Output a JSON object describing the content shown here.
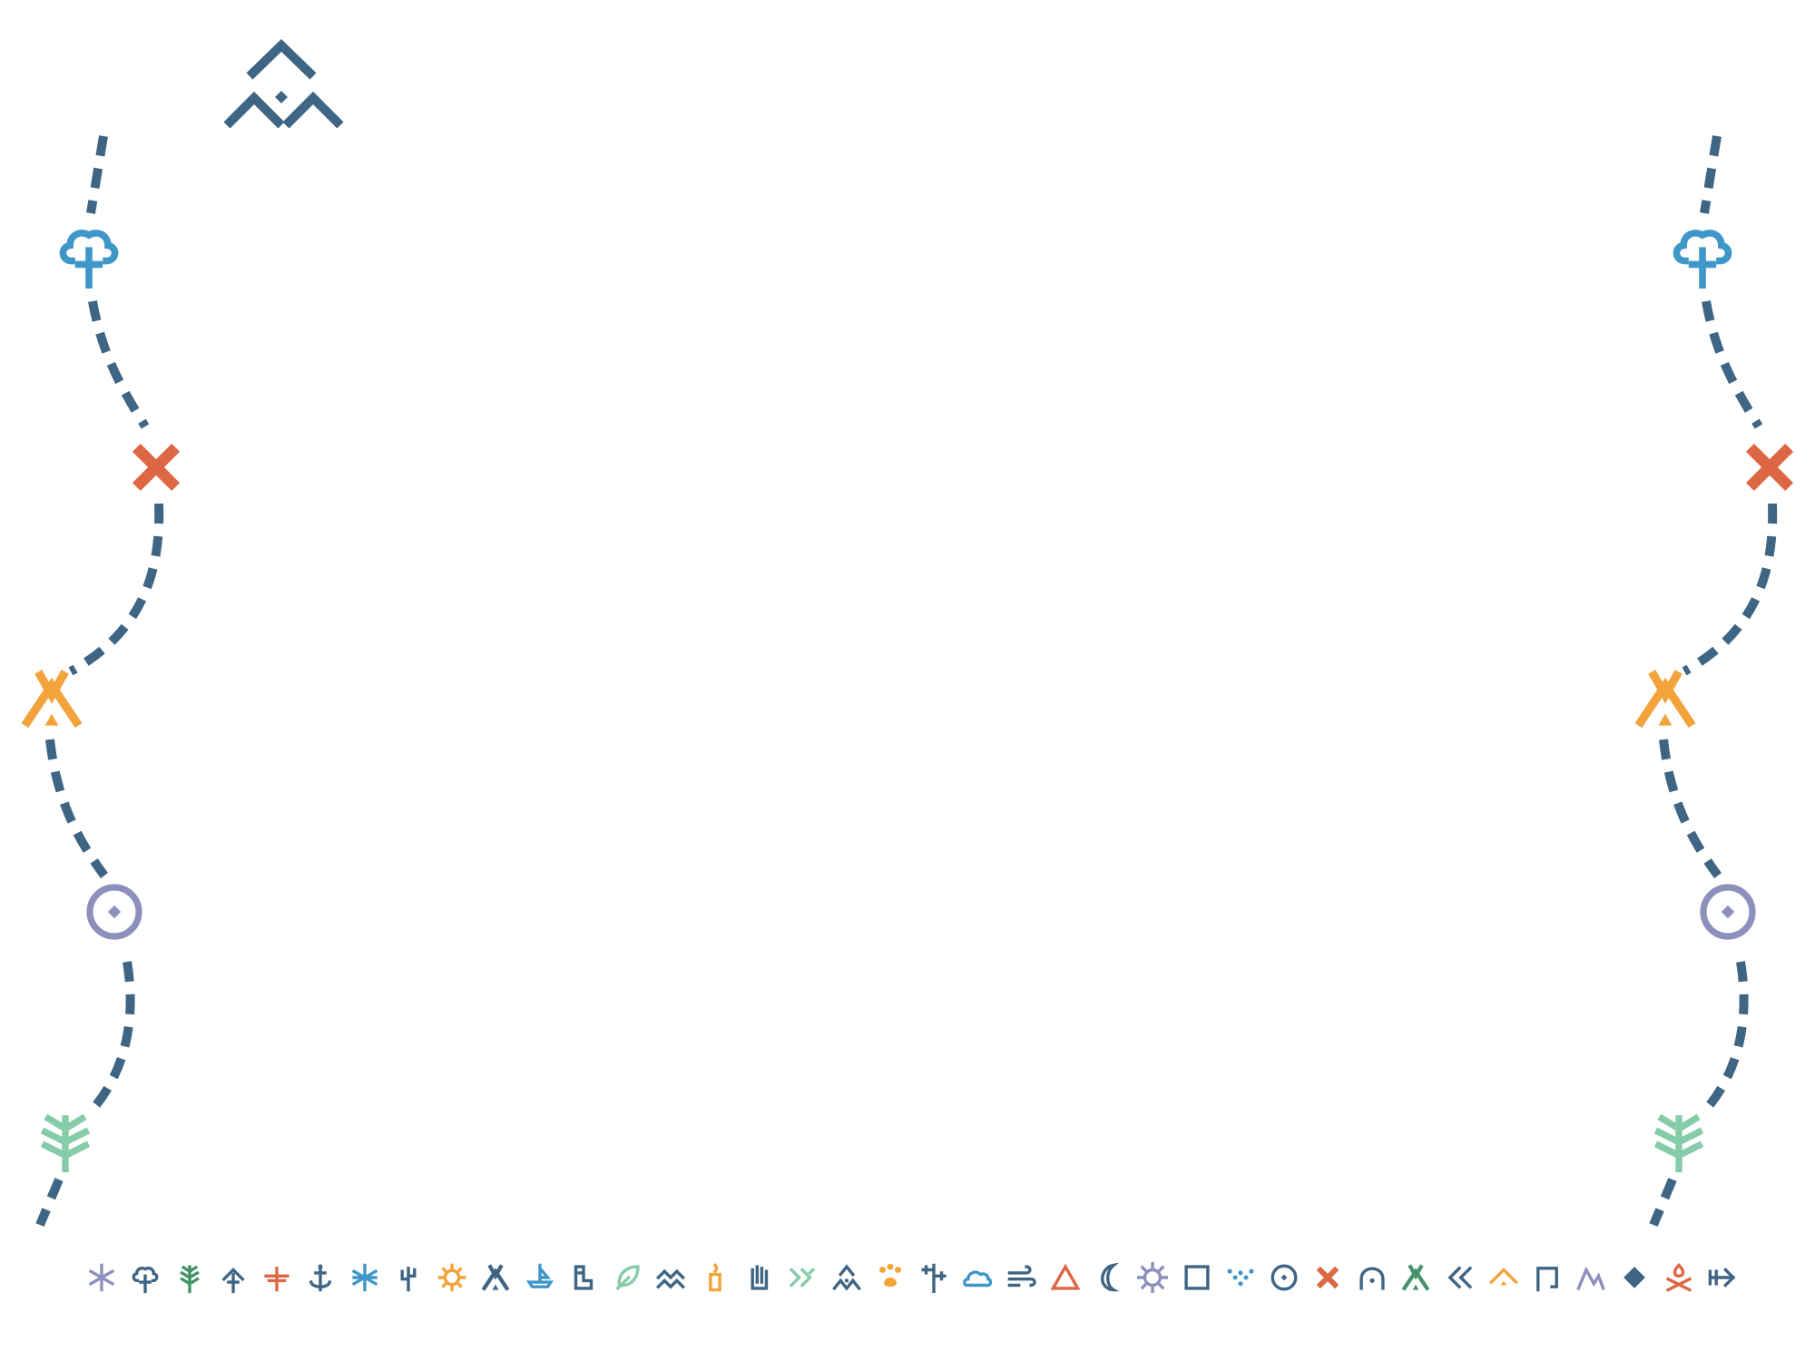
{
  "colors": {
    "navy": "#3f6584",
    "blue": "#3f96c8",
    "orange": "#f2a33a",
    "red": "#dd6744",
    "lavender": "#8f8fbe",
    "mint": "#86cca9",
    "green": "#45936a"
  },
  "header_emblem": {
    "icon": "mountains-icon",
    "color": "#3f6584"
  },
  "left_trail": {
    "path_color": "#3f6584",
    "markers": [
      {
        "icon": "tree-icon",
        "color": "#3f96c8"
      },
      {
        "icon": "x-mark-icon",
        "color": "#dd6744"
      },
      {
        "icon": "tent-icon",
        "color": "#f2a33a"
      },
      {
        "icon": "circle-target-icon",
        "color": "#8f8fbe"
      },
      {
        "icon": "pine-branch-icon",
        "color": "#86cca9"
      }
    ]
  },
  "right_trail": {
    "path_color": "#3f6584",
    "markers": [
      {
        "icon": "tree-icon",
        "color": "#3f96c8"
      },
      {
        "icon": "x-mark-icon",
        "color": "#dd6744"
      },
      {
        "icon": "tent-icon",
        "color": "#f2a33a"
      },
      {
        "icon": "circle-target-icon",
        "color": "#8f8fbe"
      },
      {
        "icon": "pine-branch-icon",
        "color": "#86cca9"
      }
    ]
  },
  "icon_strip": [
    {
      "icon": "snowflake-icon",
      "color": "#8f8fbe"
    },
    {
      "icon": "tree-icon",
      "color": "#3f6584"
    },
    {
      "icon": "pine-icon",
      "color": "#45936a"
    },
    {
      "icon": "arrow-tree-icon",
      "color": "#3f6584"
    },
    {
      "icon": "cross-sign-icon",
      "color": "#dd6744"
    },
    {
      "icon": "anchor-icon",
      "color": "#3f6584"
    },
    {
      "icon": "star-burst-icon",
      "color": "#3f96c8"
    },
    {
      "icon": "cactus-icon",
      "color": "#3f6584"
    },
    {
      "icon": "sun-wheel-icon",
      "color": "#f2a33a"
    },
    {
      "icon": "tent-icon",
      "color": "#3f6584"
    },
    {
      "icon": "boat-icon",
      "color": "#3f96c8"
    },
    {
      "icon": "boot-icon",
      "color": "#3f6584"
    },
    {
      "icon": "leaf-icon",
      "color": "#86cca9"
    },
    {
      "icon": "waves-icon",
      "color": "#3f6584"
    },
    {
      "icon": "candle-icon",
      "color": "#f2a33a"
    },
    {
      "icon": "hand-icon",
      "color": "#3f6584"
    },
    {
      "icon": "double-chevron-icon",
      "color": "#86cca9"
    },
    {
      "icon": "peaks-icon",
      "color": "#3f6584"
    },
    {
      "icon": "paw-icon",
      "color": "#f2a33a"
    },
    {
      "icon": "signpost-icon",
      "color": "#3f6584"
    },
    {
      "icon": "cloud-icon",
      "color": "#3f96c8"
    },
    {
      "icon": "wind-icon",
      "color": "#3f6584"
    },
    {
      "icon": "triangle-icon",
      "color": "#dd6744"
    },
    {
      "icon": "moon-icon",
      "color": "#3f6584"
    },
    {
      "icon": "gear-sun-icon",
      "color": "#8f8fbe"
    },
    {
      "icon": "square-icon",
      "color": "#3f6584"
    },
    {
      "icon": "dots-heart-icon",
      "color": "#3f96c8"
    },
    {
      "icon": "circle-target-icon",
      "color": "#3f6584"
    },
    {
      "icon": "x-mark-icon",
      "color": "#dd6744"
    },
    {
      "icon": "arch-icon",
      "color": "#3f6584"
    },
    {
      "icon": "tent-icon",
      "color": "#45936a"
    },
    {
      "icon": "double-chevron-left-icon",
      "color": "#3f6584"
    },
    {
      "icon": "roof-icon",
      "color": "#f2a33a"
    },
    {
      "icon": "gate-icon",
      "color": "#3f6584"
    },
    {
      "icon": "mountain-icon",
      "color": "#8f8fbe"
    },
    {
      "icon": "diamond-icon",
      "color": "#3f6584"
    },
    {
      "icon": "campfire-icon",
      "color": "#dd6744"
    },
    {
      "icon": "arrow-right-icon",
      "color": "#3f6584"
    }
  ]
}
